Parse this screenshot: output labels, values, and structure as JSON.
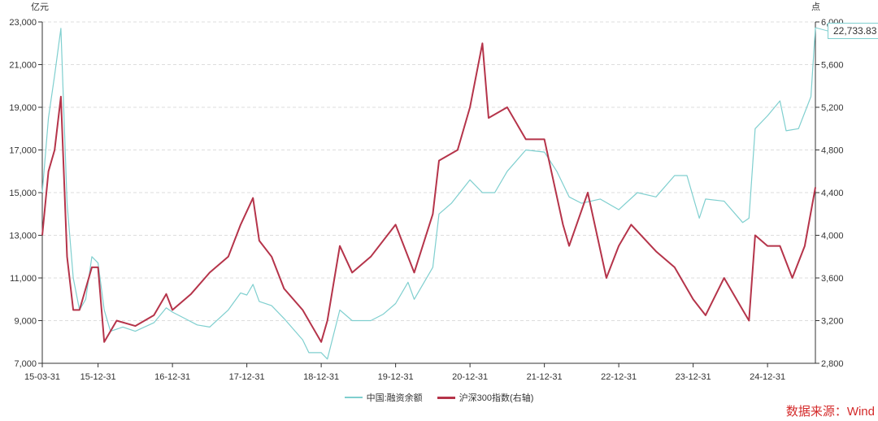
{
  "chart_data": {
    "type": "line",
    "title": "",
    "left_axis_unit": "亿元",
    "right_axis_unit": "点",
    "ylim_left": [
      7000,
      23000
    ],
    "ylim_right": [
      2800,
      6000
    ],
    "left_ticks": [
      "7,000",
      "9,000",
      "11,000",
      "13,000",
      "15,000",
      "17,000",
      "19,000",
      "21,000",
      "23,000"
    ],
    "right_ticks": [
      "2,800",
      "3,200",
      "3,600",
      "4,000",
      "4,400",
      "4,800",
      "5,200",
      "5,600",
      "6,000"
    ],
    "x_ticks": [
      "15-03-31",
      "15-12-31",
      "16-12-31",
      "17-12-31",
      "18-12-31",
      "19-12-31",
      "20-12-31",
      "21-12-31",
      "22-12-31",
      "23-12-31",
      "24-12-31"
    ],
    "x_range": [
      "2015-03",
      "2025-08"
    ],
    "grid": "horizontal dashed",
    "legend_position": "bottom",
    "tooltip": "22,733.83",
    "source": "数据来源：Wind",
    "series": [
      {
        "name": "中国:融资余额",
        "axis": "left",
        "color": "#7fcfcf",
        "x": [
          "2015-03",
          "2015-04",
          "2015-05",
          "2015-06",
          "2015-07",
          "2015-08",
          "2015-09",
          "2015-10",
          "2015-11",
          "2015-12",
          "2016-01",
          "2016-02",
          "2016-04",
          "2016-06",
          "2016-09",
          "2016-11",
          "2016-12",
          "2017-02",
          "2017-04",
          "2017-06",
          "2017-09",
          "2017-11",
          "2017-12",
          "2018-01",
          "2018-02",
          "2018-04",
          "2018-06",
          "2018-09",
          "2018-10",
          "2018-12",
          "2019-01",
          "2019-03",
          "2019-05",
          "2019-08",
          "2019-10",
          "2019-12",
          "2020-02",
          "2020-03",
          "2020-06",
          "2020-07",
          "2020-09",
          "2020-12",
          "2021-02",
          "2021-04",
          "2021-06",
          "2021-09",
          "2021-12",
          "2022-02",
          "2022-04",
          "2022-06",
          "2022-09",
          "2022-12",
          "2023-03",
          "2023-06",
          "2023-09",
          "2023-11",
          "2024-01",
          "2024-02",
          "2024-05",
          "2024-08",
          "2024-09",
          "2024-10",
          "2024-12",
          "2025-02",
          "2025-03",
          "2025-05",
          "2025-07",
          "2025-08"
        ],
        "values": [
          15000,
          18500,
          20500,
          22700,
          14500,
          11000,
          9500,
          10000,
          12000,
          11700,
          9500,
          8500,
          8700,
          8500,
          8900,
          9600,
          9400,
          9100,
          8800,
          8700,
          9500,
          10300,
          10200,
          10700,
          9900,
          9700,
          9100,
          8100,
          7500,
          7500,
          7200,
          9500,
          9000,
          9000,
          9300,
          9800,
          10800,
          10000,
          11500,
          14000,
          14500,
          15600,
          15000,
          15000,
          16000,
          17000,
          16900,
          16000,
          14800,
          14500,
          14700,
          14200,
          15000,
          14800,
          15800,
          15800,
          13800,
          14700,
          14600,
          13600,
          13800,
          18000,
          18600,
          19300,
          17900,
          18000,
          19500,
          22733.83
        ]
      },
      {
        "name": "沪深300指数(右轴)",
        "axis": "right",
        "color": "#b5344a",
        "x": [
          "2015-03",
          "2015-04",
          "2015-05",
          "2015-06",
          "2015-07",
          "2015-08",
          "2015-09",
          "2015-11",
          "2015-12",
          "2016-01",
          "2016-03",
          "2016-06",
          "2016-09",
          "2016-11",
          "2016-12",
          "2017-03",
          "2017-06",
          "2017-09",
          "2017-11",
          "2018-01",
          "2018-02",
          "2018-04",
          "2018-06",
          "2018-09",
          "2018-12",
          "2019-01",
          "2019-03",
          "2019-05",
          "2019-08",
          "2019-12",
          "2020-03",
          "2020-06",
          "2020-07",
          "2020-10",
          "2020-12",
          "2021-02",
          "2021-03",
          "2021-06",
          "2021-09",
          "2021-12",
          "2022-03",
          "2022-04",
          "2022-07",
          "2022-10",
          "2022-12",
          "2023-02",
          "2023-06",
          "2023-09",
          "2023-12",
          "2024-02",
          "2024-05",
          "2024-08",
          "2024-09",
          "2024-10",
          "2024-12",
          "2025-02",
          "2025-04",
          "2025-06",
          "2025-08"
        ],
        "values": [
          4000,
          4600,
          4800,
          5300,
          3800,
          3300,
          3300,
          3700,
          3700,
          3000,
          3200,
          3150,
          3250,
          3450,
          3300,
          3450,
          3650,
          3800,
          4100,
          4350,
          3950,
          3800,
          3500,
          3300,
          3000,
          3200,
          3900,
          3650,
          3800,
          4100,
          3650,
          4200,
          4700,
          4800,
          5200,
          5800,
          5100,
          5200,
          4900,
          4900,
          4100,
          3900,
          4400,
          3600,
          3900,
          4100,
          3850,
          3700,
          3400,
          3250,
          3600,
          3300,
          3200,
          4000,
          3900,
          3900,
          3600,
          3900,
          4450
        ]
      }
    ]
  }
}
